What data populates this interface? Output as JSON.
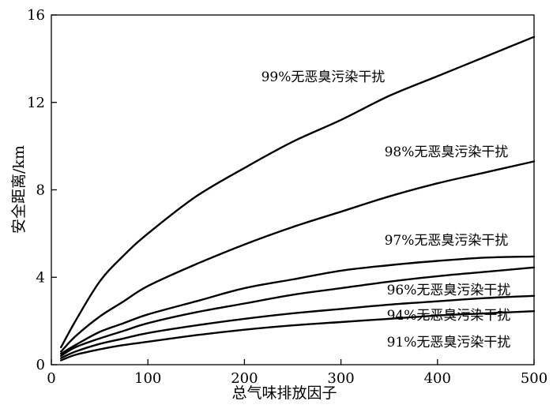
{
  "chart_data": {
    "type": "line",
    "xlabel": "总气味排放因子",
    "ylabel": "安全距离/km",
    "xlim": [
      0,
      500
    ],
    "ylim": [
      0,
      16
    ],
    "xticks": [
      "0",
      "100",
      "200",
      "300",
      "400",
      "500"
    ],
    "yticks": [
      "0",
      "4",
      "8",
      "12",
      "16"
    ],
    "grid": false,
    "legend": "none (labels placed next to curves)",
    "line_color": "#000000",
    "series": [
      {
        "name": "99%无恶臭污染干扰",
        "x": [
          10,
          25,
          50,
          75,
          100,
          150,
          200,
          250,
          300,
          350,
          400,
          450,
          500
        ],
        "y": [
          0.8,
          2.0,
          3.8,
          5.0,
          6.0,
          7.7,
          9.0,
          10.2,
          11.2,
          12.3,
          13.2,
          14.1,
          15.0
        ]
      },
      {
        "name": "98%无恶臭污染干扰",
        "x": [
          10,
          25,
          50,
          75,
          100,
          150,
          200,
          250,
          300,
          350,
          400,
          450,
          500
        ],
        "y": [
          0.6,
          1.3,
          2.2,
          2.9,
          3.6,
          4.6,
          5.5,
          6.3,
          7.0,
          7.7,
          8.3,
          8.8,
          9.3
        ]
      },
      {
        "name": "97%无恶臭污染干扰",
        "x": [
          10,
          25,
          50,
          75,
          100,
          150,
          200,
          250,
          300,
          350,
          400,
          450,
          500
        ],
        "y": [
          0.5,
          0.9,
          1.5,
          1.9,
          2.3,
          2.9,
          3.5,
          3.9,
          4.3,
          4.55,
          4.75,
          4.9,
          4.95
        ]
      },
      {
        "name": "96%无恶臭污染干扰",
        "x": [
          10,
          25,
          50,
          75,
          100,
          150,
          200,
          250,
          300,
          350,
          400,
          450,
          500
        ],
        "y": [
          0.4,
          0.8,
          1.2,
          1.55,
          1.9,
          2.4,
          2.8,
          3.2,
          3.5,
          3.8,
          4.05,
          4.25,
          4.45
        ]
      },
      {
        "name": "94%无恶臭污染干扰",
        "x": [
          10,
          25,
          50,
          75,
          100,
          150,
          200,
          250,
          300,
          350,
          400,
          450,
          500
        ],
        "y": [
          0.3,
          0.6,
          0.95,
          1.2,
          1.45,
          1.8,
          2.1,
          2.35,
          2.55,
          2.75,
          2.9,
          3.05,
          3.15
        ]
      },
      {
        "name": "91%无恶臭污染干扰",
        "x": [
          10,
          25,
          50,
          75,
          100,
          150,
          200,
          250,
          300,
          350,
          400,
          450,
          500
        ],
        "y": [
          0.2,
          0.45,
          0.7,
          0.9,
          1.05,
          1.35,
          1.6,
          1.8,
          1.95,
          2.1,
          2.25,
          2.35,
          2.45
        ]
      }
    ]
  }
}
